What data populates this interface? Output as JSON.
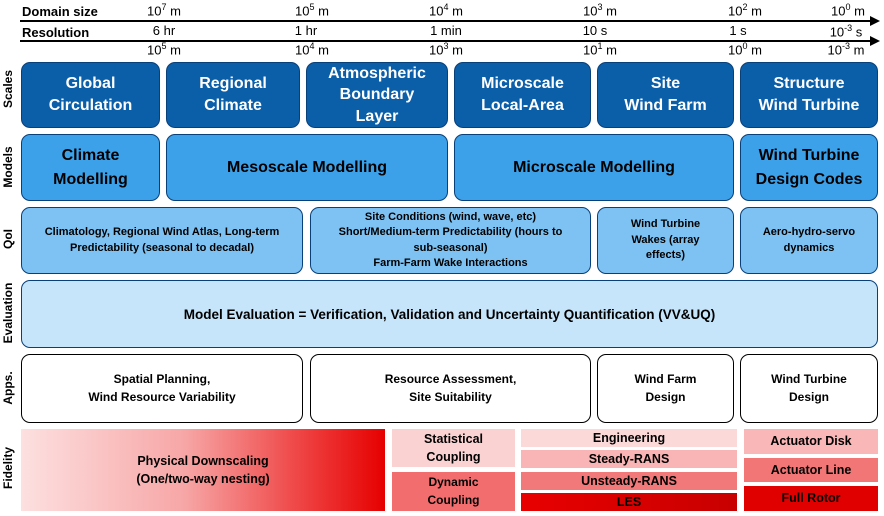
{
  "header": {
    "domain_size_label": "Domain size",
    "resolution_label": "Resolution",
    "domain_ticks": [
      {
        "base": "10",
        "exp": "7",
        "unit": " m"
      },
      {
        "base": "10",
        "exp": "5",
        "unit": " m"
      },
      {
        "base": "10",
        "exp": "4",
        "unit": " m"
      },
      {
        "base": "10",
        "exp": "3",
        "unit": " m"
      },
      {
        "base": "10",
        "exp": "2",
        "unit": " m"
      },
      {
        "base": "10",
        "exp": "0",
        "unit": " m"
      }
    ],
    "time_ticks": [
      "6 hr",
      "1 hr",
      "1 min",
      "10 s",
      "1 s"
    ],
    "time_tick_last": {
      "base": "10",
      "exp": "-3",
      "unit": " s"
    },
    "resolution_ticks": [
      {
        "base": "10",
        "exp": "5",
        "unit": " m"
      },
      {
        "base": "10",
        "exp": "4",
        "unit": " m"
      },
      {
        "base": "10",
        "exp": "3",
        "unit": " m"
      },
      {
        "base": "10",
        "exp": "1",
        "unit": " m"
      },
      {
        "base": "10",
        "exp": "0",
        "unit": " m"
      },
      {
        "base": "10",
        "exp": "-3",
        "unit": " m"
      }
    ]
  },
  "row_labels": {
    "scales": "Scales",
    "models": "Models",
    "qoi": "QoI",
    "evaluation": "Evaluation",
    "apps": "Apps.",
    "fidelity": "Fidelity"
  },
  "scales": [
    [
      "Global",
      "Circulation"
    ],
    [
      "Regional",
      "Climate"
    ],
    [
      "Atmospheric",
      "Boundary",
      "Layer"
    ],
    [
      "Microscale",
      "Local-Area"
    ],
    [
      "Site",
      "Wind Farm"
    ],
    [
      "Structure",
      "Wind Turbine"
    ]
  ],
  "models": [
    [
      "Climate",
      "Modelling"
    ],
    [
      "Mesoscale Modelling"
    ],
    [
      "Microscale Modelling"
    ],
    [
      "Wind Turbine",
      "Design Codes"
    ]
  ],
  "qoi": [
    [
      "Climatology, Regional Wind Atlas, Long-term",
      "Predictability (seasonal to decadal)"
    ],
    [
      "Site Conditions (wind, wave, etc)",
      "Short/Medium-term Predictability (hours to",
      "sub-seasonal)",
      "Farm-Farm Wake Interactions"
    ],
    [
      "Wind Turbine",
      "Wakes (array",
      "effects)"
    ],
    [
      "Aero-hydro-servo",
      "dynamics"
    ]
  ],
  "evaluation": "Model Evaluation = Verification, Validation and Uncertainty Quantification (VV&UQ)",
  "apps": [
    [
      "Spatial Planning,",
      "Wind Resource Variability"
    ],
    [
      "Resource Assessment,",
      "Site Suitability"
    ],
    [
      "Wind Farm",
      "Design"
    ],
    [
      "Wind Turbine",
      "Design"
    ]
  ],
  "fidelity": {
    "downscaling": [
      "Physical Downscaling",
      "(One/two-way nesting)"
    ],
    "statistical": [
      "Statistical",
      "Coupling"
    ],
    "dynamic": [
      "Dynamic",
      "Coupling"
    ],
    "engineering": "Engineering",
    "steady_rans": "Steady-RANS",
    "unsteady_rans": "Unsteady-RANS",
    "les": "LES",
    "actuator_disk": "Actuator Disk",
    "actuator_line": "Actuator Line",
    "full_rotor": "Full Rotor"
  },
  "colors": {
    "scale_box": "#0b5ea8",
    "model_box": "#3ca1e9",
    "qoi_box": "#7dc2f2",
    "eval_box": "#c6e5fa",
    "fidelity_low": "#fbd6d6",
    "fidelity_high": "#e60000"
  }
}
